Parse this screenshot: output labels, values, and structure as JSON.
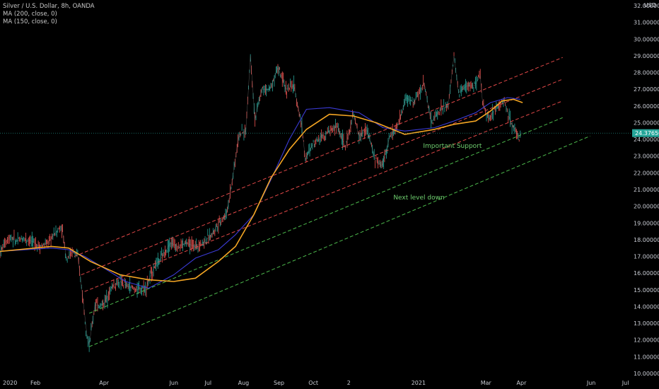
{
  "header": {
    "symbol_line": "Silver / U.S. Dollar, 8h, OANDA",
    "ma_lines": [
      "MA (200, close, 0)",
      "MA (150, close, 0)"
    ],
    "currency": "USD"
  },
  "chart_data": {
    "type": "line",
    "title": "Silver / U.S. Dollar, 8h, OANDA",
    "xlabel": "",
    "ylabel": "",
    "grid": false,
    "ylim": [
      10,
      32
    ],
    "x_ticks": [
      "2020",
      "Feb",
      "Apr",
      "Jun",
      "Jul",
      "Aug",
      "Sep",
      "Oct",
      "2",
      "2021",
      "Mar",
      "Apr",
      "Jun",
      "Jul"
    ],
    "y_ticks": [
      "32.00000",
      "31.00000",
      "30.00000",
      "29.00000",
      "28.00000",
      "27.00000",
      "26.00000",
      "25.00000",
      "24.00000",
      "23.00000",
      "22.00000",
      "21.00000",
      "20.00000",
      "19.00000",
      "18.00000",
      "17.00000",
      "16.00000",
      "15.00000",
      "14.00000",
      "13.00000",
      "12.00000",
      "11.00000",
      "10.00000"
    ],
    "last_price": "24.37650",
    "last_price_value": 24.3765,
    "price_path": [
      [
        "2020-01-01",
        17.2
      ],
      [
        "2020-01-05",
        17.8
      ],
      [
        "2020-01-10",
        18.2
      ],
      [
        "2020-01-15",
        17.9
      ],
      [
        "2020-01-22",
        18.1
      ],
      [
        "2020-01-29",
        17.9
      ],
      [
        "2020-02-05",
        17.6
      ],
      [
        "2020-02-12",
        17.8
      ],
      [
        "2020-02-18",
        18.4
      ],
      [
        "2020-02-24",
        18.8
      ],
      [
        "2020-02-28",
        16.9
      ],
      [
        "2020-03-05",
        17.3
      ],
      [
        "2020-03-09",
        17.0
      ],
      [
        "2020-03-13",
        14.8
      ],
      [
        "2020-03-17",
        12.3
      ],
      [
        "2020-03-19",
        11.7
      ],
      [
        "2020-03-24",
        14.1
      ],
      [
        "2020-03-31",
        14.1
      ],
      [
        "2020-04-08",
        15.2
      ],
      [
        "2020-04-15",
        15.5
      ],
      [
        "2020-04-22",
        15.2
      ],
      [
        "2020-04-30",
        15.0
      ],
      [
        "2020-05-08",
        15.2
      ],
      [
        "2020-05-15",
        16.4
      ],
      [
        "2020-05-22",
        17.0
      ],
      [
        "2020-05-29",
        17.8
      ],
      [
        "2020-06-05",
        17.6
      ],
      [
        "2020-06-12",
        17.8
      ],
      [
        "2020-06-19",
        17.6
      ],
      [
        "2020-06-26",
        17.8
      ],
      [
        "2020-07-03",
        18.2
      ],
      [
        "2020-07-10",
        19.0
      ],
      [
        "2020-07-17",
        19.5
      ],
      [
        "2020-07-22",
        21.5
      ],
      [
        "2020-07-28",
        24.3
      ],
      [
        "2020-08-03",
        24.5
      ],
      [
        "2020-08-07",
        29.0
      ],
      [
        "2020-08-11",
        25.2
      ],
      [
        "2020-08-17",
        27.0
      ],
      [
        "2020-08-24",
        27.0
      ],
      [
        "2020-08-31",
        28.3
      ],
      [
        "2020-09-07",
        27.0
      ],
      [
        "2020-09-14",
        27.2
      ],
      [
        "2020-09-21",
        24.8
      ],
      [
        "2020-09-24",
        22.8
      ],
      [
        "2020-10-01",
        23.8
      ],
      [
        "2020-10-08",
        24.2
      ],
      [
        "2020-10-15",
        24.5
      ],
      [
        "2020-10-22",
        24.8
      ],
      [
        "2020-10-29",
        23.5
      ],
      [
        "2020-11-05",
        25.5
      ],
      [
        "2020-11-10",
        24.2
      ],
      [
        "2020-11-17",
        24.6
      ],
      [
        "2020-11-24",
        22.8
      ],
      [
        "2020-11-30",
        22.4
      ],
      [
        "2020-12-07",
        24.2
      ],
      [
        "2020-12-14",
        24.8
      ],
      [
        "2020-12-21",
        26.5
      ],
      [
        "2020-12-28",
        26.2
      ],
      [
        "2021-01-06",
        27.4
      ],
      [
        "2021-01-12",
        25.0
      ],
      [
        "2021-01-20",
        25.8
      ],
      [
        "2021-01-27",
        26.0
      ],
      [
        "2021-02-01",
        29.0
      ],
      [
        "2021-02-05",
        26.8
      ],
      [
        "2021-02-12",
        27.2
      ],
      [
        "2021-02-19",
        27.2
      ],
      [
        "2021-02-24",
        27.8
      ],
      [
        "2021-02-26",
        26.2
      ],
      [
        "2021-03-04",
        25.2
      ],
      [
        "2021-03-10",
        26.0
      ],
      [
        "2021-03-17",
        26.3
      ],
      [
        "2021-03-23",
        25.0
      ],
      [
        "2021-03-30",
        24.1
      ],
      [
        "2021-04-01",
        24.4
      ]
    ],
    "series": [
      {
        "name": "MA (200, close, 0)",
        "color": "#3b3bd6",
        "values": [
          [
            "2020-01-01",
            17.3
          ],
          [
            "2020-02-15",
            17.5
          ],
          [
            "2020-03-01",
            17.4
          ],
          [
            "2020-03-15",
            17.0
          ],
          [
            "2020-04-01",
            16.3
          ],
          [
            "2020-04-20",
            15.5
          ],
          [
            "2020-05-10",
            15.1
          ],
          [
            "2020-06-01",
            15.9
          ],
          [
            "2020-06-20",
            16.9
          ],
          [
            "2020-07-10",
            17.4
          ],
          [
            "2020-07-25",
            18.3
          ],
          [
            "2020-08-10",
            19.5
          ],
          [
            "2020-08-25",
            21.6
          ],
          [
            "2020-09-10",
            24.0
          ],
          [
            "2020-09-25",
            25.8
          ],
          [
            "2020-10-15",
            25.9
          ],
          [
            "2020-11-10",
            25.6
          ],
          [
            "2020-12-01",
            24.7
          ],
          [
            "2020-12-20",
            24.5
          ],
          [
            "2021-01-15",
            24.7
          ],
          [
            "2021-02-01",
            25.1
          ],
          [
            "2021-02-20",
            25.6
          ],
          [
            "2021-03-05",
            26.2
          ],
          [
            "2021-03-20",
            26.5
          ],
          [
            "2021-03-31",
            26.4
          ]
        ]
      },
      {
        "name": "MA (150, close, 0)",
        "color": "#f5a623",
        "values": [
          [
            "2020-01-01",
            17.3
          ],
          [
            "2020-02-15",
            17.6
          ],
          [
            "2020-03-01",
            17.5
          ],
          [
            "2020-03-20",
            16.7
          ],
          [
            "2020-04-15",
            15.9
          ],
          [
            "2020-05-10",
            15.6
          ],
          [
            "2020-06-01",
            15.5
          ],
          [
            "2020-06-20",
            15.7
          ],
          [
            "2020-07-10",
            16.7
          ],
          [
            "2020-07-25",
            17.6
          ],
          [
            "2020-08-10",
            19.5
          ],
          [
            "2020-08-25",
            21.7
          ],
          [
            "2020-09-10",
            23.4
          ],
          [
            "2020-09-25",
            24.6
          ],
          [
            "2020-10-15",
            25.5
          ],
          [
            "2020-11-05",
            25.4
          ],
          [
            "2020-11-25",
            25.0
          ],
          [
            "2020-12-20",
            24.3
          ],
          [
            "2021-01-15",
            24.6
          ],
          [
            "2021-02-01",
            24.9
          ],
          [
            "2021-02-20",
            25.1
          ],
          [
            "2021-03-05",
            25.7
          ],
          [
            "2021-03-15",
            26.3
          ],
          [
            "2021-03-25",
            26.4
          ],
          [
            "2021-04-02",
            26.2
          ]
        ]
      }
    ],
    "trend_lines": [
      {
        "color": "#e04848",
        "from": [
          "2020-03-06",
          17.0
        ],
        "to": [
          "2021-05-07",
          28.9
        ]
      },
      {
        "color": "#e04848",
        "from": [
          "2020-03-12",
          15.9
        ],
        "to": [
          "2021-05-07",
          27.6
        ]
      },
      {
        "color": "#e04848",
        "from": [
          "2020-03-15",
          14.9
        ],
        "to": [
          "2021-05-07",
          26.3
        ]
      },
      {
        "color": "#4cb84c",
        "from": [
          "2020-03-19",
          13.6
        ],
        "to": [
          "2021-05-07",
          25.3
        ]
      },
      {
        "color": "#4cb84c",
        "from": [
          "2020-03-19",
          11.6
        ],
        "to": [
          "2021-05-31",
          24.2
        ]
      }
    ],
    "annotations": [
      {
        "text": "Important Support",
        "x": "2021-01-05",
        "y": 23.5,
        "color": "#6fcf6f"
      },
      {
        "text": "Next level down",
        "x": "2020-12-10",
        "y": 20.4,
        "color": "#6fcf6f"
      }
    ]
  }
}
